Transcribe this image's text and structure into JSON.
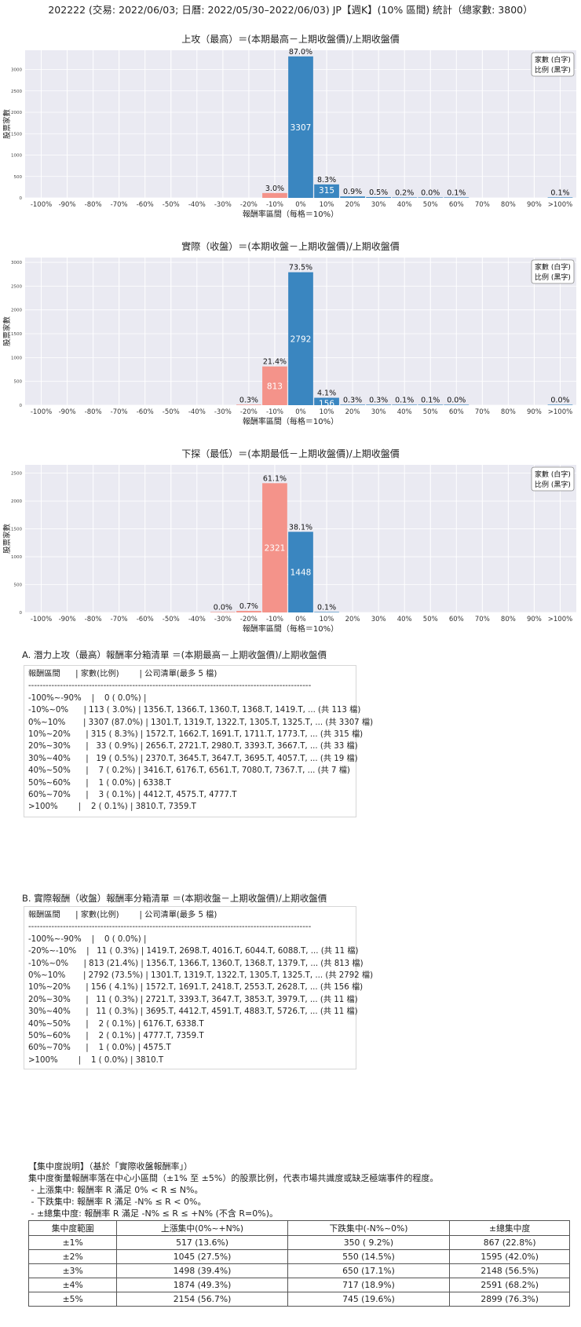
{
  "title": "202222 (交易: 2022/06/03; 日曆: 2022/05/30–2022/06/03) JP【週K】(10% 區間) 統計（總家數: 3800）",
  "colors": {
    "positive": "#3a86c0",
    "negative": "#f4938a",
    "plot_bg": "#eaeaf2",
    "grid": "#ffffff"
  },
  "chart_data": [
    {
      "type": "bar",
      "title": "上攻（最高）＝(本期最高－上期收盤價)/上期收盤價",
      "xlabel": "報酬率區間（每格＝10%）",
      "ylabel": "股票家數",
      "legend": [
        "家數 (白字)",
        "比例 (黑字)"
      ],
      "legend_position": "top-right",
      "grid": true,
      "categories": [
        "-100%",
        "-90%",
        "-80%",
        "-70%",
        "-60%",
        "-50%",
        "-40%",
        "-30%",
        "-20%",
        "-10%",
        "0%",
        "10%",
        "20%",
        "30%",
        "40%",
        "50%",
        "60%",
        "70%",
        "80%",
        "90%",
        ">100%"
      ],
      "ylim": [
        0,
        3450
      ],
      "yticks": [
        0,
        500,
        1000,
        1500,
        2000,
        2500,
        3000
      ],
      "bars": [
        {
          "category": "-10%",
          "value": 113,
          "pct": "3.0%",
          "count_label": "",
          "sign": "neg"
        },
        {
          "category": "0%",
          "value": 3307,
          "pct": "87.0%",
          "count_label": "3307",
          "sign": "pos"
        },
        {
          "category": "10%",
          "value": 315,
          "pct": "8.3%",
          "count_label": "315",
          "sign": "pos"
        },
        {
          "category": "20%",
          "value": 33,
          "pct": "0.9%",
          "count_label": "",
          "sign": "pos"
        },
        {
          "category": "30%",
          "value": 19,
          "pct": "0.5%",
          "count_label": "",
          "sign": "pos"
        },
        {
          "category": "40%",
          "value": 7,
          "pct": "0.2%",
          "count_label": "",
          "sign": "pos"
        },
        {
          "category": "50%",
          "value": 1,
          "pct": "0.0%",
          "count_label": "",
          "sign": "pos"
        },
        {
          "category": "60%",
          "value": 3,
          "pct": "0.1%",
          "count_label": "",
          "sign": "pos"
        },
        {
          "category": ">100%",
          "value": 2,
          "pct": "0.1%",
          "count_label": "",
          "sign": "pos"
        }
      ]
    },
    {
      "type": "bar",
      "title": "實際（收盤）＝(本期收盤－上期收盤價)/上期收盤價",
      "xlabel": "報酬率區間（每格＝10%）",
      "ylabel": "股票家數",
      "legend": [
        "家數 (白字)",
        "比例 (黑字)"
      ],
      "legend_position": "top-right",
      "grid": true,
      "categories": [
        "-100%",
        "-90%",
        "-80%",
        "-70%",
        "-60%",
        "-50%",
        "-40%",
        "-30%",
        "-20%",
        "-10%",
        "0%",
        "10%",
        "20%",
        "30%",
        "40%",
        "50%",
        "60%",
        "70%",
        "80%",
        "90%",
        ">100%"
      ],
      "ylim": [
        0,
        3100
      ],
      "yticks": [
        0,
        500,
        1000,
        1500,
        2000,
        2500,
        3000
      ],
      "bars": [
        {
          "category": "-20%",
          "value": 11,
          "pct": "0.3%",
          "count_label": "",
          "sign": "neg"
        },
        {
          "category": "-10%",
          "value": 813,
          "pct": "21.4%",
          "count_label": "813",
          "sign": "neg"
        },
        {
          "category": "0%",
          "value": 2792,
          "pct": "73.5%",
          "count_label": "2792",
          "sign": "pos"
        },
        {
          "category": "10%",
          "value": 156,
          "pct": "4.1%",
          "count_label": "156",
          "sign": "pos"
        },
        {
          "category": "20%",
          "value": 11,
          "pct": "0.3%",
          "count_label": "",
          "sign": "pos"
        },
        {
          "category": "30%",
          "value": 11,
          "pct": "0.3%",
          "count_label": "",
          "sign": "pos"
        },
        {
          "category": "40%",
          "value": 2,
          "pct": "0.1%",
          "count_label": "",
          "sign": "pos"
        },
        {
          "category": "50%",
          "value": 2,
          "pct": "0.1%",
          "count_label": "",
          "sign": "pos"
        },
        {
          "category": "60%",
          "value": 1,
          "pct": "0.0%",
          "count_label": "",
          "sign": "pos"
        },
        {
          "category": ">100%",
          "value": 1,
          "pct": "0.0%",
          "count_label": "",
          "sign": "pos"
        }
      ]
    },
    {
      "type": "bar",
      "title": "下探（最低）＝(本期最低－上期收盤價)/上期收盤價",
      "xlabel": "報酬率區間（每格＝10%）",
      "ylabel": "股票家數",
      "legend": [
        "家數 (白字)",
        "比例 (黑字)"
      ],
      "legend_position": "top-right",
      "grid": true,
      "categories": [
        "-100%",
        "-90%",
        "-80%",
        "-70%",
        "-60%",
        "-50%",
        "-40%",
        "-30%",
        "-20%",
        "-10%",
        "0%",
        "10%",
        "20%",
        "30%",
        "40%",
        "50%",
        "60%",
        "70%",
        "80%",
        "90%",
        ">100%"
      ],
      "ylim": [
        0,
        2650
      ],
      "yticks": [
        0,
        500,
        1000,
        1500,
        2000,
        2500
      ],
      "bars": [
        {
          "category": "-30%",
          "value": 1,
          "pct": "0.0%",
          "count_label": "",
          "sign": "neg"
        },
        {
          "category": "-20%",
          "value": 27,
          "pct": "0.7%",
          "count_label": "",
          "sign": "neg"
        },
        {
          "category": "-10%",
          "value": 2321,
          "pct": "61.1%",
          "count_label": "2321",
          "sign": "neg"
        },
        {
          "category": "0%",
          "value": 1448,
          "pct": "38.1%",
          "count_label": "1448",
          "sign": "pos"
        },
        {
          "category": "10%",
          "value": 3,
          "pct": "0.1%",
          "count_label": "",
          "sign": "pos"
        }
      ]
    }
  ],
  "list_a": {
    "title": "A. 潛力上攻（最高）報酬率分箱清單 ＝(本期最高－上期收盤價)/上期收盤價",
    "lines": [
      "報酬區間      | 家數(比例)        | 公司清單(最多 5 檔)",
      "--------------------------------------------------------------------------------------------------",
      "-100%~-90%    |    0 ( 0.0%) |",
      "-10%~0%      | 113 ( 3.0%) | 1356.T, 1366.T, 1360.T, 1368.T, 1419.T, ... (共 113 檔)",
      "0%~10%       | 3307 (87.0%) | 1301.T, 1319.T, 1322.T, 1305.T, 1325.T, ... (共 3307 檔)",
      "10%~20%      | 315 ( 8.3%) | 1572.T, 1662.T, 1691.T, 1711.T, 1773.T, ... (共 315 檔)",
      "20%~30%      |   33 ( 0.9%) | 2656.T, 2721.T, 2980.T, 3393.T, 3667.T, ... (共 33 檔)",
      "30%~40%      |   19 ( 0.5%) | 2370.T, 3645.T, 3647.T, 3695.T, 4057.T, ... (共 19 檔)",
      "40%~50%      |    7 ( 0.2%) | 3416.T, 6176.T, 6561.T, 7080.T, 7367.T, ... (共 7 檔)",
      "50%~60%      |    1 ( 0.0%) | 6338.T",
      "60%~70%      |    3 ( 0.1%) | 4412.T, 4575.T, 4777.T",
      ">100%        |    2 ( 0.1%) | 3810.T, 7359.T"
    ]
  },
  "list_b": {
    "title": "B. 實際報酬（收盤）報酬率分箱清單 ＝(本期收盤－上期收盤價)/上期收盤價",
    "lines": [
      "報酬區間      | 家數(比例)        | 公司清單(最多 5 檔)",
      "--------------------------------------------------------------------------------------------------",
      "-100%~-90%    |    0 ( 0.0%) |",
      "-20%~-10%    |   11 ( 0.3%) | 1419.T, 2698.T, 4016.T, 6044.T, 6088.T, ... (共 11 檔)",
      "-10%~0%      | 813 (21.4%) | 1356.T, 1366.T, 1360.T, 1368.T, 1379.T, ... (共 813 檔)",
      "0%~10%       | 2792 (73.5%) | 1301.T, 1319.T, 1322.T, 1305.T, 1325.T, ... (共 2792 檔)",
      "10%~20%      | 156 ( 4.1%) | 1572.T, 1691.T, 2418.T, 2553.T, 2628.T, ... (共 156 檔)",
      "20%~30%      |   11 ( 0.3%) | 2721.T, 3393.T, 3647.T, 3853.T, 3979.T, ... (共 11 檔)",
      "30%~40%      |   11 ( 0.3%) | 3695.T, 4412.T, 4591.T, 4883.T, 5726.T, ... (共 11 檔)",
      "40%~50%      |    2 ( 0.1%) | 6176.T, 6338.T",
      "50%~60%      |    2 ( 0.1%) | 4777.T, 7359.T",
      "60%~70%      |    1 ( 0.0%) | 4575.T",
      ">100%        |    1 ( 0.0%) | 3810.T"
    ]
  },
  "concentration": {
    "heading": "【集中度說明】（基於「實際收盤報酬率」）",
    "lines": [
      "集中度衡量報酬率落在中心小區間（±1% 至 ±5%）的股票比例，代表市場共識度或缺乏極端事件的程度。",
      " - 上漲集中: 報酬率 R 滿足 0% < R ≤ N%。",
      " - 下跌集中: 報酬率 R 滿足 -N% ≤ R < 0%。",
      " - ±總集中度: 報酬率 R 滿足 -N% ≤ R ≤ +N% (不含 R=0%)。"
    ],
    "table": {
      "headers": [
        "集中度範圍",
        "上漲集中(0%~+N%)",
        "下跌集中(-N%~0%)",
        "±總集中度"
      ],
      "rows": [
        [
          "±1%",
          "517 (13.6%)",
          "350 ( 9.2%)",
          "867 (22.8%)"
        ],
        [
          "±2%",
          "1045 (27.5%)",
          "550 (14.5%)",
          "1595 (42.0%)"
        ],
        [
          "±3%",
          "1498 (39.4%)",
          "650 (17.1%)",
          "2148 (56.5%)"
        ],
        [
          "±4%",
          "1874 (49.3%)",
          "717 (18.9%)",
          "2591 (68.2%)"
        ],
        [
          "±5%",
          "2154 (56.7%)",
          "745 (19.6%)",
          "2899 (76.3%)"
        ]
      ]
    }
  }
}
